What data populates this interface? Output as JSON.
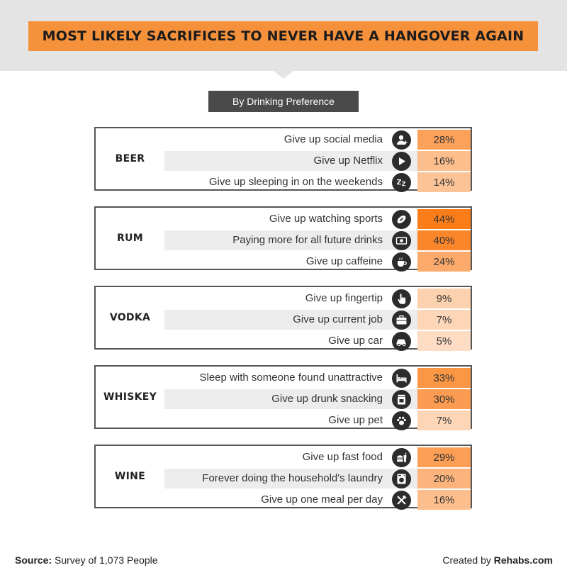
{
  "title": "MOST LIKELY SACRIFICES TO NEVER HAVE A HANGOVER AGAIN",
  "subtitle": "By Drinking Preference",
  "footer": {
    "source_label": "Source:",
    "source_text": "Survey of 1,073 People",
    "credit_text": "Created by",
    "credit_brand": "Rehabs.com"
  },
  "colors": {
    "header_band": "#e4e4e4",
    "title_bg": "#f6913b",
    "subtitle_bg": "#4a4a4a",
    "scale_low": "#fdeee2",
    "scale_high": "#fb7d1a",
    "icon_bg": "#2c2c2c"
  },
  "chart_data": {
    "type": "table",
    "title": "MOST LIKELY SACRIFICES TO NEVER HAVE A HANGOVER AGAIN",
    "subtitle": "By Drinking Preference",
    "unit": "%",
    "groups": [
      {
        "name": "BEER",
        "items": [
          {
            "label": "Give up social media",
            "value": 28,
            "display": "28%",
            "icon": "user-add-icon"
          },
          {
            "label": "Give up Netflix",
            "value": 16,
            "display": "16%",
            "icon": "play-icon"
          },
          {
            "label": "Give up sleeping in on the weekends",
            "value": 14,
            "display": "14%",
            "icon": "sleep-zzz-icon"
          }
        ]
      },
      {
        "name": "RUM",
        "items": [
          {
            "label": "Give up watching sports",
            "value": 44,
            "display": "44%",
            "icon": "football-icon"
          },
          {
            "label": "Paying more for all future drinks",
            "value": 40,
            "display": "40%",
            "icon": "money-icon"
          },
          {
            "label": "Give up caffeine",
            "value": 24,
            "display": "24%",
            "icon": "coffee-cup-icon"
          }
        ]
      },
      {
        "name": "VODKA",
        "items": [
          {
            "label": "Give up fingertip",
            "value": 9,
            "display": "9%",
            "icon": "pointing-hand-icon"
          },
          {
            "label": "Give up current job",
            "value": 7,
            "display": "7%",
            "icon": "briefcase-icon"
          },
          {
            "label": "Give up car",
            "value": 5,
            "display": "5%",
            "icon": "car-icon"
          }
        ]
      },
      {
        "name": "WHISKEY",
        "items": [
          {
            "label": "Sleep with someone found unattractive",
            "value": 33,
            "display": "33%",
            "icon": "bed-icon"
          },
          {
            "label": "Give up drunk snacking",
            "value": 30,
            "display": "30%",
            "icon": "snack-jar-icon"
          },
          {
            "label": "Give up pet",
            "value": 7,
            "display": "7%",
            "icon": "paw-icon"
          }
        ]
      },
      {
        "name": "WINE",
        "items": [
          {
            "label": "Give up fast food",
            "value": 29,
            "display": "29%",
            "icon": "burger-drink-icon"
          },
          {
            "label": "Forever doing the household's laundry",
            "value": 20,
            "display": "20%",
            "icon": "washing-machine-icon"
          },
          {
            "label": "Give up one meal per day",
            "value": 16,
            "display": "16%",
            "icon": "fork-knife-icon"
          }
        ]
      }
    ]
  }
}
